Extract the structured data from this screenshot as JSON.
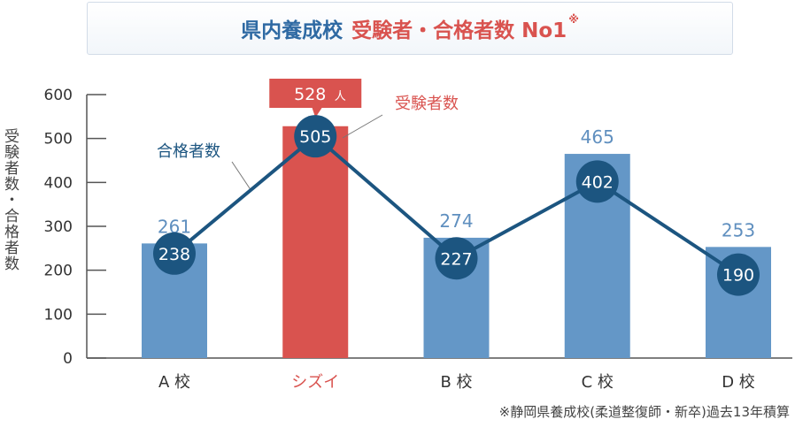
{
  "title": {
    "part1": "県内養成校",
    "part2": "受験者・合格者数 No1",
    "mark": "※"
  },
  "footnote": "※静岡県養成校(柔道整復師・新卒)過去13年積算",
  "colors": {
    "bar": "#6497c7",
    "highlight_bar": "#d9534f",
    "line": "#1c5580",
    "bubble": "#1c5580",
    "value_label": "#5f8fbf",
    "title_blue": "#2f6aa3"
  },
  "chart_data": {
    "type": "bar",
    "categories": [
      "A 校",
      "シズイ",
      "B 校",
      "C 校",
      "D 校"
    ],
    "highlight_index": 1,
    "series": [
      {
        "name": "受験者数",
        "type": "bar",
        "values": [
          261,
          528,
          274,
          465,
          253
        ]
      },
      {
        "name": "合格者数",
        "type": "line",
        "values": [
          238,
          505,
          227,
          402,
          190
        ]
      }
    ],
    "highlight_value_label": "528",
    "highlight_value_unit": "人",
    "annotations": {
      "bar": "受験者数",
      "line": "合格者数"
    },
    "ylabel": "受験者数・合格者数",
    "ylim": [
      0,
      600
    ],
    "yticks": [
      0,
      100,
      200,
      300,
      400,
      500,
      600
    ],
    "grid": false
  }
}
